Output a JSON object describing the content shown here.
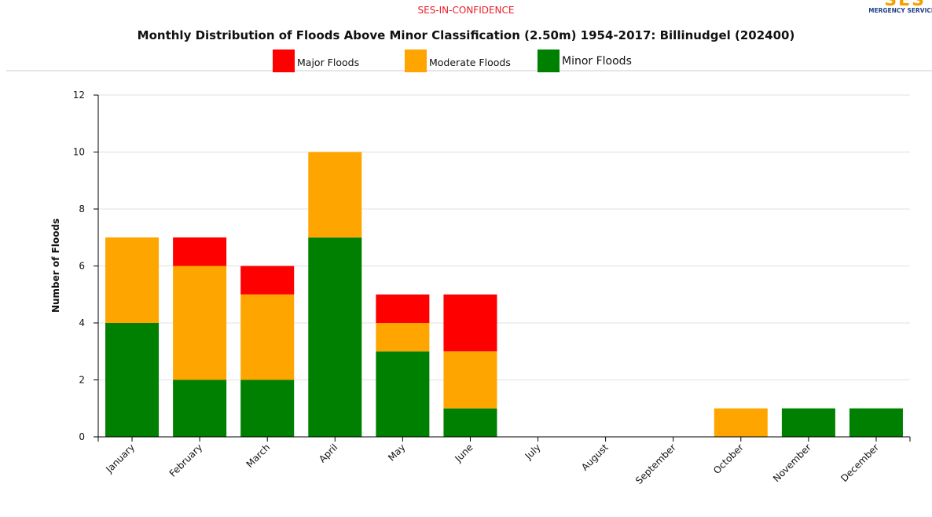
{
  "header": {
    "classification": "SES-IN-CONFIDENCE",
    "logo_text": "NSW STATE EMERGENCY SERVICE"
  },
  "chart_data": {
    "type": "bar",
    "stacked": true,
    "title": "Monthly Distribution of Floods Above Minor Classification (2.50m) 1954-2017: Billinudgel (202400)",
    "xlabel": "",
    "ylabel": "Number of Floods",
    "ylim": [
      0,
      12
    ],
    "yticks": [
      0,
      2,
      4,
      6,
      8,
      10,
      12
    ],
    "grid": true,
    "legend_position": "top",
    "categories": [
      "January",
      "February",
      "March",
      "April",
      "May",
      "June",
      "July",
      "August",
      "September",
      "October",
      "November",
      "December"
    ],
    "series": [
      {
        "name": "Minor Floods",
        "color": "#008000",
        "values": [
          4,
          2,
          2,
          7,
          3,
          1,
          0,
          0,
          0,
          0,
          1,
          1
        ]
      },
      {
        "name": "Moderate Floods",
        "color": "#ffa500",
        "values": [
          3,
          4,
          3,
          3,
          1,
          2,
          0,
          0,
          0,
          1,
          0,
          0
        ]
      },
      {
        "name": "Major Floods",
        "color": "#ff0000",
        "values": [
          0,
          1,
          1,
          0,
          1,
          2,
          0,
          0,
          0,
          0,
          0,
          0
        ]
      }
    ],
    "legend": [
      {
        "name": "Major Floods",
        "color": "#ff0000"
      },
      {
        "name": "Moderate Floods",
        "color": "#ffa500"
      },
      {
        "name": "Minor Floods",
        "color": "#008000"
      }
    ]
  }
}
